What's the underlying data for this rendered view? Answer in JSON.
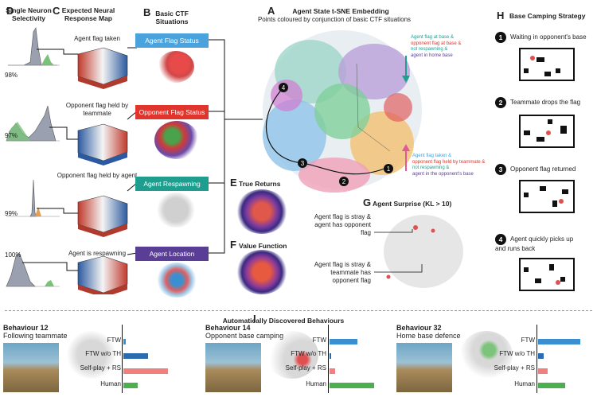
{
  "panels": {
    "D": {
      "letter": "D",
      "title": "Single Neuron Selectivity",
      "percents": [
        "98%",
        "97%",
        "99%",
        "100%"
      ]
    },
    "C": {
      "letter": "C",
      "title": "Expected Neural Response Map",
      "labels": [
        "Agent flag taken",
        "Opponent flag held by teammate",
        "Opponent flag held by agent",
        "Agent is respawning"
      ]
    },
    "B": {
      "letter": "B",
      "title": "Basic CTF Situations",
      "situations": [
        "Agent Flag Status",
        "Opponent Flag Status",
        "Agent Respawning",
        "Agent Location"
      ]
    },
    "A": {
      "letter": "A",
      "title": "Agent State t-SNE Embedding",
      "subtitle": "Points coloured by conjunction of basic CTF situations",
      "legend_top": [
        "Agent flag at base &",
        "opponent flag at base &",
        "not respawning &",
        "agent in home base"
      ],
      "legend_bottom": [
        "Agent flag taken &",
        "opponent flag held by teammate &",
        "not respawning &",
        "agent in the opponent's base"
      ],
      "markers": [
        "1",
        "2",
        "3",
        "4"
      ]
    },
    "E": {
      "letter": "E",
      "title": "True Returns"
    },
    "F": {
      "letter": "F",
      "title": "Value Function"
    },
    "G": {
      "letter": "G",
      "title": "Agent Surprise (KL > 10)",
      "annotations": [
        "Agent flag is stray & agent has opponent flag",
        "Agent flag is stray & teammate has opponent flag"
      ]
    },
    "H": {
      "letter": "H",
      "title": "Base Camping Strategy",
      "steps": [
        {
          "num": "1",
          "text": "Waiting in opponent's base"
        },
        {
          "num": "2",
          "text": "Teammate drops the flag"
        },
        {
          "num": "3",
          "text": "Opponent flag returned"
        },
        {
          "num": "4",
          "text": "Agent quickly picks up and runs back"
        }
      ]
    },
    "I": {
      "letter": "I",
      "title": "Automatically Discovered Behaviours"
    }
  },
  "colors": {
    "flag_status": "#4aa3dc",
    "opponent_flag": "#e0342c",
    "respawning": "#1f9e8f",
    "location": "#5a3e96",
    "ftw": "#3a8fd0",
    "ftw_noth": "#2b6cb0",
    "selfplay": "#f08080",
    "human": "#4caf50"
  },
  "behaviours": [
    {
      "title": "Behaviour 12",
      "desc": "Following teammate",
      "ftw": 0.06,
      "ftw_noth": 0.55,
      "selfplay": 1.0,
      "human": 0.32
    },
    {
      "title": "Behaviour 14",
      "desc": "Opponent base camping",
      "ftw": 0.62,
      "ftw_noth": 0.04,
      "selfplay": 0.12,
      "human": 1.0
    },
    {
      "title": "Behaviour 32",
      "desc": "Home base defence",
      "ftw": 0.95,
      "ftw_noth": 0.12,
      "selfplay": 0.22,
      "human": 0.6
    }
  ],
  "bar_labels": [
    "FTW",
    "FTW w/o TH",
    "Self-play + RS",
    "Human"
  ]
}
